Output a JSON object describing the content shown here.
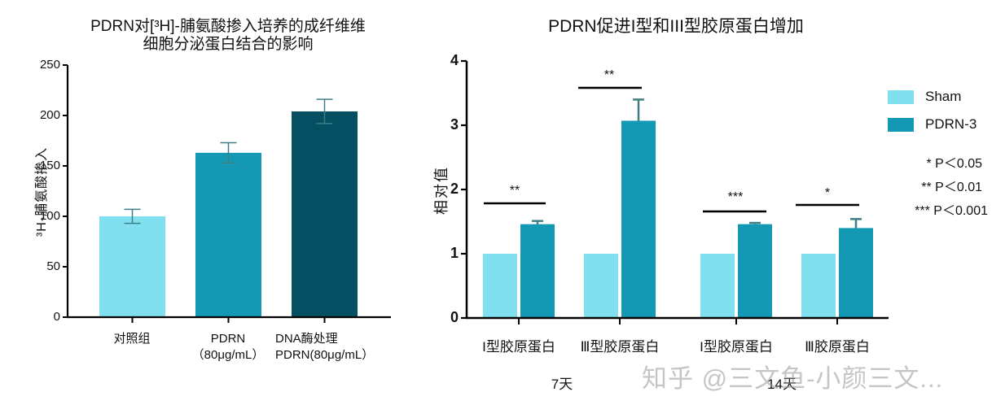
{
  "colors": {
    "sham": "#80E0F0",
    "pdrn": "#1399B4",
    "dnase": "#044F62",
    "error_bar": "#3E7F86",
    "axis": "#000000"
  },
  "chart_data": [
    {
      "type": "bar",
      "title": "PDRN对[3H]-脯氨酸掺入培养的成纤维细胞分泌蛋白结合的影响",
      "title_lines": [
        "PDRN对[³H]-脯氨酸掺入培养的成纤维维",
        "细胞分泌蛋白结合的影响"
      ],
      "xlabel": "",
      "ylabel": "³H-脯氨酸掺入",
      "ylim": [
        0,
        250
      ],
      "yticks": [
        0,
        50,
        100,
        150,
        200,
        250
      ],
      "categories": [
        "对照组",
        "PDRN (80μg/mL)",
        "DNA酶处理 PDRN(80μg/mL)"
      ],
      "values": [
        100,
        163,
        204
      ],
      "errors": [
        7,
        10,
        12
      ],
      "bar_colors": [
        "#80E0F0",
        "#1399B4",
        "#044F62"
      ],
      "grid": false,
      "legend": null
    },
    {
      "type": "bar",
      "title": "PDRN促进I型和III型胶原蛋白增加",
      "xlabel": "",
      "ylabel": "相对值",
      "ylim": [
        0,
        4
      ],
      "yticks": [
        0,
        1,
        2,
        3,
        4
      ],
      "categories": [
        "I型胶原蛋白 (7天)",
        "III型胶原蛋白 (7天)",
        "I型胶原蛋白 (14天)",
        "III胶原蛋白 (14天)"
      ],
      "group_labels": [
        "7天",
        "14天"
      ],
      "series": [
        {
          "name": "Sham",
          "values": [
            1.0,
            1.0,
            1.0,
            1.0
          ],
          "errors": [
            0,
            0,
            0,
            0
          ],
          "color": "#80E0F0"
        },
        {
          "name": "PDRN-3",
          "values": [
            1.46,
            3.07,
            1.46,
            1.4
          ],
          "errors": [
            0.05,
            0.33,
            0.02,
            0.14
          ],
          "color": "#1399B4"
        }
      ],
      "significance": [
        "**",
        "**",
        "***",
        "*"
      ],
      "legend_position": "right",
      "legend": [
        "Sham",
        "PDRN-3"
      ],
      "p_value_notes": [
        "* P＜0.05",
        "** P＜0.01",
        "*** P＜0.001"
      ],
      "grid": false
    }
  ],
  "left_chart": {
    "title_line1": "PDRN对[³H]-脯氨酸掺入培养的成纤维维",
    "title_line2": "细胞分泌蛋白结合的影响",
    "ylabel": "³H-脯氨酸掺入",
    "yticks": [
      "0",
      "50",
      "100",
      "150",
      "200",
      "250"
    ],
    "xlabels": [
      {
        "line1": "对照组",
        "line2": ""
      },
      {
        "line1": "PDRN",
        "line2": "（80μg/mL）"
      },
      {
        "line1": "DNA酶处理",
        "line2": "PDRN(80μg/mL）"
      }
    ]
  },
  "right_chart": {
    "title": "PDRN促进I型和III型胶原蛋白增加",
    "ylabel": "相对值",
    "yticks": [
      "0",
      "1",
      "2",
      "3",
      "4"
    ],
    "xlabels": [
      "I型胶原蛋白",
      "Ⅲ型胶原蛋白",
      "I型胶原蛋白",
      "Ⅲ胶原蛋白"
    ],
    "groups": [
      "7天",
      "14天"
    ],
    "sig": [
      "**",
      "**",
      "***",
      "*"
    ],
    "legend": [
      {
        "label": "Sham",
        "color": "#80E0F0"
      },
      {
        "label": "PDRN-3",
        "color": "#1399B4"
      }
    ],
    "pnotes": [
      "* P＜0.05",
      "** P＜0.01",
      "*** P＜0.001"
    ]
  },
  "watermark": "知乎 @三文鱼-小颜三文..."
}
